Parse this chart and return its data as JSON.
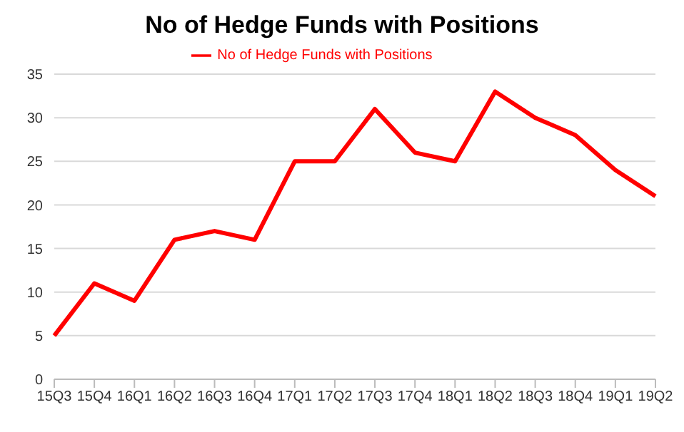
{
  "chart_data": {
    "type": "line",
    "title": "No of Hedge Funds with Positions",
    "categories": [
      "15Q3",
      "15Q4",
      "16Q1",
      "16Q2",
      "16Q3",
      "16Q4",
      "17Q1",
      "17Q2",
      "17Q3",
      "17Q4",
      "18Q1",
      "18Q2",
      "18Q3",
      "18Q4",
      "19Q1",
      "19Q2"
    ],
    "series": [
      {
        "name": "No of Hedge Funds with Positions",
        "color": "#ff0000",
        "values": [
          5,
          11,
          9,
          16,
          17,
          16,
          25,
          25,
          31,
          26,
          25,
          33,
          30,
          28,
          24,
          21
        ]
      }
    ],
    "ylim": [
      0,
      35
    ],
    "yticks": [
      0,
      5,
      10,
      15,
      20,
      25,
      30,
      35
    ],
    "grid": "y",
    "legend": "top",
    "marker": "none",
    "line_style": "solid"
  }
}
